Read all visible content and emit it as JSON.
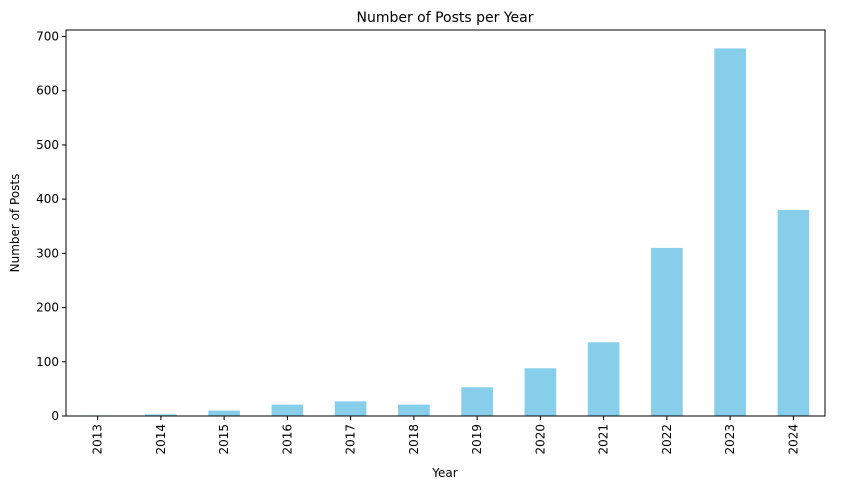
{
  "chart_data": {
    "type": "bar",
    "title": "Number of Posts per Year",
    "xlabel": "Year",
    "ylabel": "Number of Posts",
    "categories": [
      "2013",
      "2014",
      "2015",
      "2016",
      "2017",
      "2018",
      "2019",
      "2020",
      "2021",
      "2022",
      "2023",
      "2024"
    ],
    "values": [
      1,
      3,
      10,
      21,
      27,
      21,
      53,
      88,
      136,
      310,
      678,
      380
    ],
    "ylim": [
      0,
      712
    ],
    "yticks": [
      0,
      100,
      200,
      300,
      400,
      500,
      600,
      700
    ],
    "bar_color": "#87CEEB",
    "grid": false,
    "legend": "none"
  }
}
